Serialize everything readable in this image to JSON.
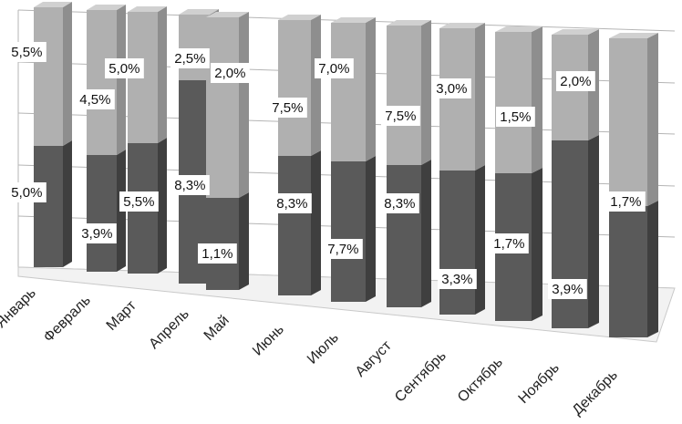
{
  "chart_data": {
    "type": "bar",
    "stacked": true,
    "three_d": true,
    "grid": true,
    "categories": [
      "Январь",
      "Февраль",
      "Март",
      "Апрель",
      "Май",
      "Июнь",
      "Июль",
      "Август",
      "Сентябрь",
      "Октябрь",
      "Ноябрь",
      "Декабрь"
    ],
    "series": [
      {
        "color": "#5a5a5a",
        "values": [
          5.0,
          3.9,
          5.5,
          8.3,
          1.1,
          8.3,
          7.7,
          8.3,
          3.3,
          1.7,
          3.9,
          1.7
        ],
        "labels": [
          "5,0%",
          "3,9%",
          "5,5%",
          "8,3%",
          "1,1%",
          "8,3%",
          "7,7%",
          "8,3%",
          "3,3%",
          "1,7%",
          "3,9%",
          "1,7%"
        ]
      },
      {
        "color": "#b0b0b0",
        "values": [
          5.5,
          4.5,
          5.0,
          2.5,
          2.0,
          7.5,
          7.0,
          7.5,
          3.0,
          1.5,
          2.0,
          0
        ],
        "labels": [
          "5,5%",
          "4,5%",
          "5,0%",
          "2,5%",
          "2,0%",
          "7,5%",
          "7,0%",
          "7,5%",
          "3,0%",
          "1,5%",
          "2,0%",
          ""
        ]
      }
    ]
  }
}
